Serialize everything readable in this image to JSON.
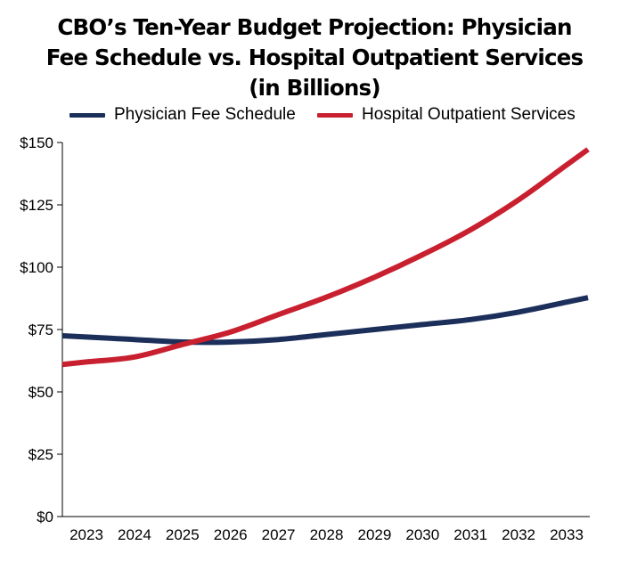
{
  "chart_data": {
    "type": "line",
    "title_lines": [
      "CBO’s Ten-Year Budget Projection: Physician",
      "Fee Schedule vs. Hospital Outpatient Services",
      "(in Billions)"
    ],
    "categories": [
      "2023",
      "2024",
      "2025",
      "2026",
      "2027",
      "2028",
      "2029",
      "2030",
      "2031",
      "2032",
      "2033"
    ],
    "y_tick_labels": [
      "$0",
      "$25",
      "$50",
      "$75",
      "$100",
      "$125",
      "$150"
    ],
    "y_ticks": [
      0,
      25,
      50,
      75,
      100,
      125,
      150
    ],
    "ylim": [
      0,
      150
    ],
    "grid": false,
    "legend_position": "top",
    "series": [
      {
        "name": "Physician Fee Schedule",
        "color": "#1b2f5a",
        "values": [
          72,
          71,
          70,
          70,
          71,
          73,
          75,
          77,
          79,
          82,
          86
        ]
      },
      {
        "name": "Hospital Outpatient Services",
        "color": "#c8202f",
        "values": [
          62,
          64,
          69,
          74,
          81,
          88,
          96,
          105,
          115,
          127,
          141
        ]
      }
    ]
  }
}
